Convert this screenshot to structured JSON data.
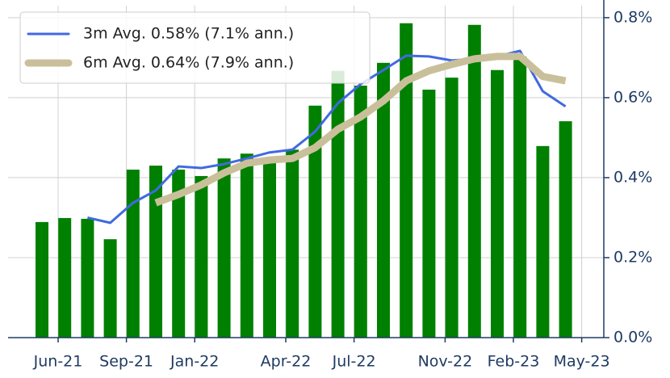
{
  "chart_data": {
    "type": "bar",
    "categories": [
      "Jun-21",
      null,
      null,
      "Sep-21",
      null,
      null,
      "Jan-22",
      null,
      null,
      null,
      "Apr-22",
      null,
      null,
      "Jul-22",
      null,
      null,
      null,
      "Nov-22",
      null,
      null,
      "Feb-23",
      null,
      null,
      "May-23"
    ],
    "values": [
      0.289,
      0.299,
      0.297,
      0.246,
      0.42,
      0.43,
      0.42,
      0.404,
      0.448,
      0.46,
      0.45,
      0.47,
      0.58,
      0.667,
      0.63,
      0.687,
      0.786,
      0.62,
      0.65,
      0.782,
      0.669,
      0.703,
      0.479,
      0.541
    ],
    "color": "#008000",
    "series": [
      {
        "name": "3m Avg. 0.58% (7.1% ann.)",
        "color": "#4169e1",
        "values": [
          null,
          null,
          0.3,
          0.287,
          0.337,
          0.368,
          0.428,
          0.424,
          0.434,
          0.448,
          0.463,
          0.47,
          0.515,
          0.586,
          0.634,
          0.669,
          0.705,
          0.703,
          0.693,
          0.697,
          0.703,
          0.717,
          0.616,
          0.578
        ]
      },
      {
        "name": "6m Avg. 0.64% (7.9% ann.)",
        "color": "#c9c09b",
        "values": [
          null,
          null,
          null,
          null,
          null,
          0.337,
          0.358,
          0.382,
          0.412,
          0.436,
          0.444,
          0.448,
          0.475,
          0.521,
          0.552,
          0.592,
          0.642,
          0.667,
          0.683,
          0.697,
          0.703,
          0.703,
          0.653,
          0.642
        ]
      }
    ],
    "ylim": [
      0,
      0.83
    ],
    "yticks": [
      {
        "value": 0,
        "label": "0.0%"
      },
      {
        "value": 0.2,
        "label": "0.2%"
      },
      {
        "value": 0.4,
        "label": "0.4%"
      },
      {
        "value": 0.6,
        "label": "0.6%"
      },
      {
        "value": 0.8,
        "label": "0.8%"
      }
    ],
    "grid": true,
    "legend": "upper left"
  }
}
